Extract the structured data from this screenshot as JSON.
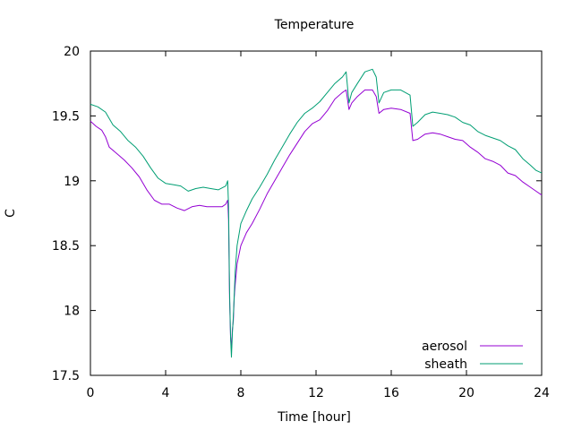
{
  "chart_data": {
    "type": "line",
    "title": "Temperature",
    "xlabel": "Time [hour]",
    "ylabel": "C",
    "xlim": [
      0,
      24
    ],
    "ylim": [
      17.5,
      20
    ],
    "xticks": [
      0,
      4,
      8,
      12,
      16,
      20,
      24
    ],
    "yticks": [
      17.5,
      18,
      18.5,
      19,
      19.5,
      20
    ],
    "grid": false,
    "legend_position": "bottom-right",
    "series": [
      {
        "name": "aerosol",
        "color": "#9400d3",
        "points": [
          [
            0,
            19.46
          ],
          [
            0.3,
            19.42
          ],
          [
            0.6,
            19.39
          ],
          [
            0.8,
            19.34
          ],
          [
            1.0,
            19.26
          ],
          [
            1.4,
            19.21
          ],
          [
            1.8,
            19.16
          ],
          [
            2.2,
            19.1
          ],
          [
            2.6,
            19.03
          ],
          [
            3.0,
            18.93
          ],
          [
            3.4,
            18.85
          ],
          [
            3.8,
            18.82
          ],
          [
            4.2,
            18.82
          ],
          [
            4.6,
            18.79
          ],
          [
            5.0,
            18.77
          ],
          [
            5.4,
            18.8
          ],
          [
            5.8,
            18.81
          ],
          [
            6.2,
            18.8
          ],
          [
            6.6,
            18.8
          ],
          [
            7.0,
            18.8
          ],
          [
            7.2,
            18.82
          ],
          [
            7.3,
            18.85
          ],
          [
            7.35,
            18.7
          ],
          [
            7.4,
            18.1
          ],
          [
            7.45,
            17.8
          ],
          [
            7.5,
            17.7
          ],
          [
            7.55,
            17.85
          ],
          [
            7.6,
            17.92
          ],
          [
            7.65,
            18.1
          ],
          [
            7.7,
            18.2
          ],
          [
            7.8,
            18.36
          ],
          [
            8.0,
            18.5
          ],
          [
            8.3,
            18.6
          ],
          [
            8.6,
            18.67
          ],
          [
            9.0,
            18.78
          ],
          [
            9.4,
            18.9
          ],
          [
            9.8,
            19.0
          ],
          [
            10.2,
            19.1
          ],
          [
            10.6,
            19.2
          ],
          [
            11.0,
            19.29
          ],
          [
            11.4,
            19.38
          ],
          [
            11.8,
            19.44
          ],
          [
            12.2,
            19.47
          ],
          [
            12.6,
            19.54
          ],
          [
            13.0,
            19.63
          ],
          [
            13.4,
            19.68
          ],
          [
            13.6,
            19.7
          ],
          [
            13.75,
            19.55
          ],
          [
            13.9,
            19.6
          ],
          [
            14.2,
            19.65
          ],
          [
            14.6,
            19.7
          ],
          [
            15.0,
            19.7
          ],
          [
            15.2,
            19.65
          ],
          [
            15.35,
            19.52
          ],
          [
            15.6,
            19.55
          ],
          [
            16.0,
            19.56
          ],
          [
            16.5,
            19.55
          ],
          [
            17.0,
            19.52
          ],
          [
            17.15,
            19.31
          ],
          [
            17.4,
            19.32
          ],
          [
            17.8,
            19.36
          ],
          [
            18.2,
            19.37
          ],
          [
            18.6,
            19.36
          ],
          [
            19.0,
            19.34
          ],
          [
            19.4,
            19.32
          ],
          [
            19.8,
            19.31
          ],
          [
            20.2,
            19.26
          ],
          [
            20.6,
            19.22
          ],
          [
            21.0,
            19.17
          ],
          [
            21.4,
            19.15
          ],
          [
            21.8,
            19.12
          ],
          [
            22.2,
            19.06
          ],
          [
            22.6,
            19.04
          ],
          [
            23.0,
            18.99
          ],
          [
            23.4,
            18.95
          ],
          [
            23.7,
            18.92
          ],
          [
            24.0,
            18.89
          ]
        ]
      },
      {
        "name": "sheath",
        "color": "#009e73",
        "points": [
          [
            0,
            19.59
          ],
          [
            0.4,
            19.57
          ],
          [
            0.8,
            19.53
          ],
          [
            1.2,
            19.43
          ],
          [
            1.6,
            19.38
          ],
          [
            2.0,
            19.31
          ],
          [
            2.4,
            19.26
          ],
          [
            2.8,
            19.19
          ],
          [
            3.2,
            19.1
          ],
          [
            3.6,
            19.02
          ],
          [
            4.0,
            18.98
          ],
          [
            4.4,
            18.97
          ],
          [
            4.8,
            18.96
          ],
          [
            5.2,
            18.92
          ],
          [
            5.6,
            18.94
          ],
          [
            6.0,
            18.95
          ],
          [
            6.4,
            18.94
          ],
          [
            6.8,
            18.93
          ],
          [
            7.2,
            18.96
          ],
          [
            7.3,
            19.0
          ],
          [
            7.35,
            18.8
          ],
          [
            7.4,
            18.15
          ],
          [
            7.45,
            17.8
          ],
          [
            7.5,
            17.64
          ],
          [
            7.55,
            17.82
          ],
          [
            7.6,
            17.95
          ],
          [
            7.7,
            18.3
          ],
          [
            7.8,
            18.5
          ],
          [
            8.0,
            18.67
          ],
          [
            8.3,
            18.77
          ],
          [
            8.6,
            18.86
          ],
          [
            9.0,
            18.95
          ],
          [
            9.4,
            19.05
          ],
          [
            9.8,
            19.16
          ],
          [
            10.2,
            19.26
          ],
          [
            10.6,
            19.36
          ],
          [
            11.0,
            19.45
          ],
          [
            11.4,
            19.52
          ],
          [
            11.8,
            19.56
          ],
          [
            12.2,
            19.61
          ],
          [
            12.6,
            19.68
          ],
          [
            13.0,
            19.75
          ],
          [
            13.4,
            19.8
          ],
          [
            13.6,
            19.84
          ],
          [
            13.75,
            19.6
          ],
          [
            13.9,
            19.68
          ],
          [
            14.2,
            19.75
          ],
          [
            14.6,
            19.84
          ],
          [
            15.0,
            19.86
          ],
          [
            15.2,
            19.8
          ],
          [
            15.35,
            19.6
          ],
          [
            15.6,
            19.68
          ],
          [
            16.0,
            19.7
          ],
          [
            16.5,
            19.7
          ],
          [
            17.0,
            19.66
          ],
          [
            17.15,
            19.42
          ],
          [
            17.4,
            19.45
          ],
          [
            17.8,
            19.51
          ],
          [
            18.2,
            19.53
          ],
          [
            18.6,
            19.52
          ],
          [
            19.0,
            19.51
          ],
          [
            19.4,
            19.49
          ],
          [
            19.8,
            19.45
          ],
          [
            20.2,
            19.43
          ],
          [
            20.6,
            19.38
          ],
          [
            21.0,
            19.35
          ],
          [
            21.4,
            19.33
          ],
          [
            21.8,
            19.31
          ],
          [
            22.2,
            19.27
          ],
          [
            22.6,
            19.24
          ],
          [
            23.0,
            19.17
          ],
          [
            23.4,
            19.12
          ],
          [
            23.7,
            19.08
          ],
          [
            24.0,
            19.06
          ]
        ]
      }
    ]
  }
}
